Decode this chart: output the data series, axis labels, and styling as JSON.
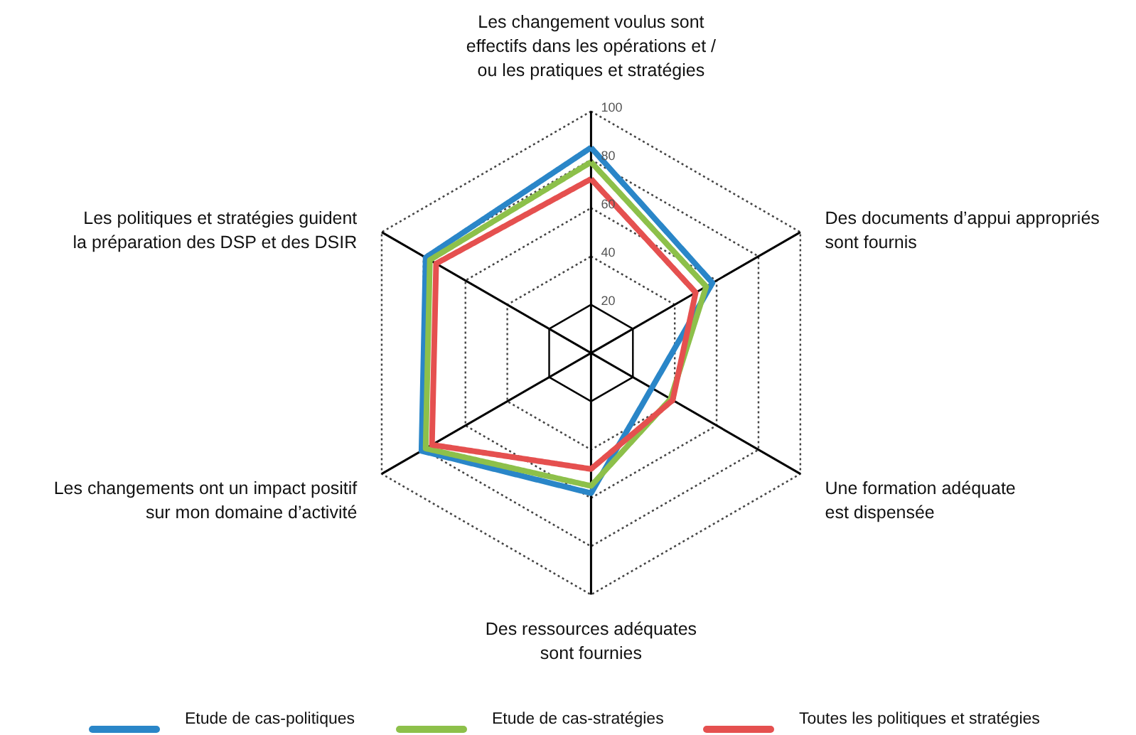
{
  "chart_data": {
    "type": "radar",
    "categories": [
      "Les changement voulus sont\neffectifs dans les opérations et /\nou les pratiques et stratégies",
      "Des documents d’appui appropriés\nsont fournis",
      "Une formation adéquate\nest dispensée",
      "Des ressources adéquates\nsont fournies",
      "Les changements ont un impact positif\nsur mon domaine d’activité",
      "Les politiques et stratégies guident\nla préparation des DSP et des DSIR"
    ],
    "series": [
      {
        "name": "Etude de cas-politiques",
        "color": "#2a86c8",
        "values": [
          85,
          58,
          29,
          58,
          81,
          79
        ]
      },
      {
        "name": "Etude de cas-stratégies",
        "color": "#8dc04a",
        "values": [
          79,
          55,
          38,
          55,
          79,
          77
        ]
      },
      {
        "name": "Toutes les politiques et stratégies",
        "color": "#e5504f",
        "values": [
          72,
          50,
          39,
          48,
          76,
          74
        ]
      }
    ],
    "ylim": [
      0,
      100
    ],
    "yticks": [
      20,
      40,
      60,
      80,
      100
    ],
    "grid": true,
    "legend": "bottom",
    "line_style": "solid",
    "marker": "none"
  }
}
